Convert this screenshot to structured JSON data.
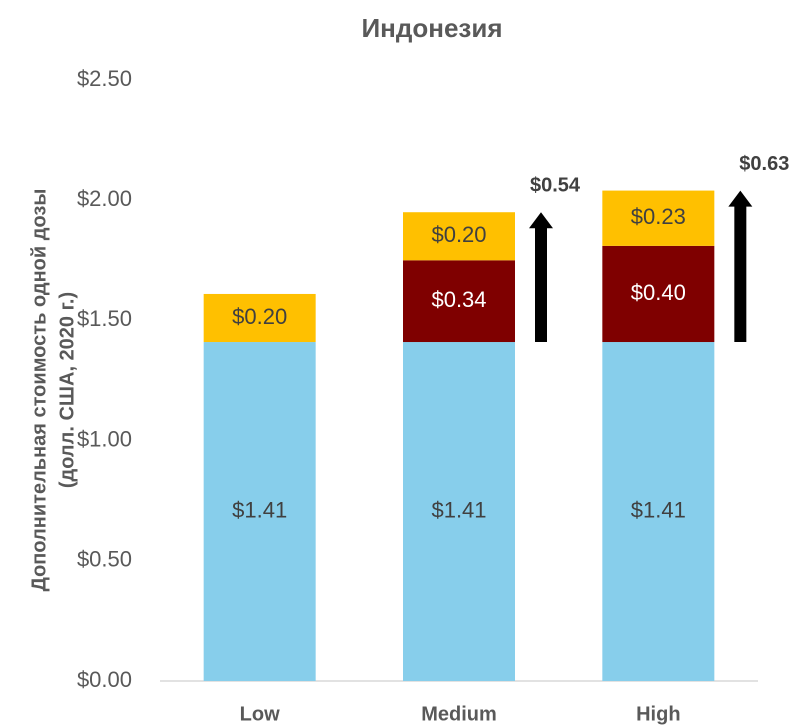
{
  "chart_data": {
    "type": "stacked_bar",
    "title": "Индонезия",
    "y_label": [
      "Дополнительная стоимость одной дозы",
      "(долл. США, 2020 г.)"
    ],
    "categories": [
      "Low",
      "Medium",
      "High"
    ],
    "series": [
      {
        "color": "#87CEEB",
        "values": [
          1.41,
          1.41,
          1.41
        ],
        "value_labels": [
          "$1.41",
          "$1.41",
          "$1.41"
        ]
      },
      {
        "color": "#7F0000",
        "values": [
          null,
          0.34,
          0.4
        ],
        "value_labels": [
          null,
          "$0.34",
          "$0.40"
        ]
      },
      {
        "color": "#FFC000",
        "values": [
          0.2,
          0.2,
          0.23
        ],
        "value_labels": [
          "$0.20",
          "$0.20",
          "$0.23"
        ]
      }
    ],
    "annotations": [
      {
        "text": "$0.54",
        "value": 0.54
      },
      {
        "text": "$0.63",
        "value": 0.63
      }
    ],
    "ylim": [
      0,
      2.5
    ],
    "yticks": [
      {
        "value": 0,
        "label": "$0.00"
      },
      {
        "value": 0.5,
        "label": "$0.50"
      },
      {
        "value": 1,
        "label": "$1.00"
      },
      {
        "value": 1.5,
        "label": "$1.50"
      },
      {
        "value": 2,
        "label": "$2.00"
      },
      {
        "value": 2.5,
        "label": "$2.50"
      }
    ],
    "grid": false
  }
}
